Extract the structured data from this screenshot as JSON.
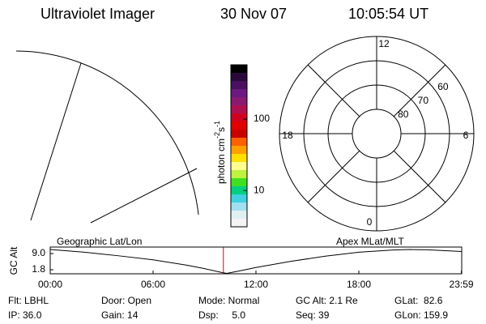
{
  "header": {
    "title": "Ultraviolet Imager",
    "date": "30 Nov 07",
    "time": "10:05:54 UT"
  },
  "colorbar": {
    "unit": [
      "photon cm",
      "-2",
      "s",
      "-1"
    ],
    "log": true,
    "lim": [
      3.1,
      577
    ],
    "ticks": [
      10,
      100
    ],
    "colors": [
      "#000000",
      "#2a0a3a",
      "#4a1060",
      "#6a1a80",
      "#8a1a70",
      "#b01050",
      "#d00020",
      "#e00000",
      "#c80000",
      "#ff6000",
      "#ffa000",
      "#ffe000",
      "#ffff90",
      "#c0f040",
      "#40e020",
      "#00d080",
      "#40d0e0",
      "#a0e0f0",
      "#e0f0f0",
      "#f4f4f4"
    ]
  },
  "polar": {
    "mlt_labels": [
      12,
      6,
      0,
      18
    ],
    "lat_rings": [
      80,
      70,
      60
    ],
    "lat_lim": [
      90,
      50
    ]
  },
  "chart_data": {
    "type": "line",
    "ylabel": "GC Alt",
    "left_label": "Geographic Lat/Lon",
    "right_label": "Apex MLat/MLT",
    "x": [
      0,
      2,
      4,
      6,
      8,
      9,
      10,
      10.3,
      11,
      12,
      14,
      16,
      18,
      20,
      21,
      22,
      24
    ],
    "values": [
      10.8,
      9.6,
      8.0,
      6.2,
      3.8,
      2.3,
      0.6,
      0.2,
      1.2,
      2.8,
      5.5,
      7.8,
      9.6,
      10.6,
      10.8,
      10.7,
      9.9
    ],
    "color": "#000000",
    "marker_x": 10.1,
    "marker_color": "#e00000",
    "xlim": [
      0,
      24
    ],
    "ylim": [
      0,
      11.9
    ],
    "xticks": [
      {
        "value": 0,
        "label": "00:00"
      },
      {
        "value": 6,
        "label": "06:00"
      },
      {
        "value": 12,
        "label": "12:00"
      },
      {
        "value": 18,
        "label": "18:00"
      },
      {
        "value": 23.98,
        "label": "23:59"
      }
    ],
    "yticks": [
      {
        "value": 9,
        "label": "9.0"
      },
      {
        "value": 1.8,
        "label": "1.8"
      }
    ]
  },
  "info": [
    [
      "Flt: LBHL",
      "Door: Open",
      "Mode: Normal",
      "GC Alt: 2.1 Re",
      "GLat:  82.6"
    ],
    [
      "IP: 36.0",
      "Gain: 14",
      "Dsp:     5.0",
      "Seq: 39",
      "GLon: 159.9"
    ]
  ]
}
